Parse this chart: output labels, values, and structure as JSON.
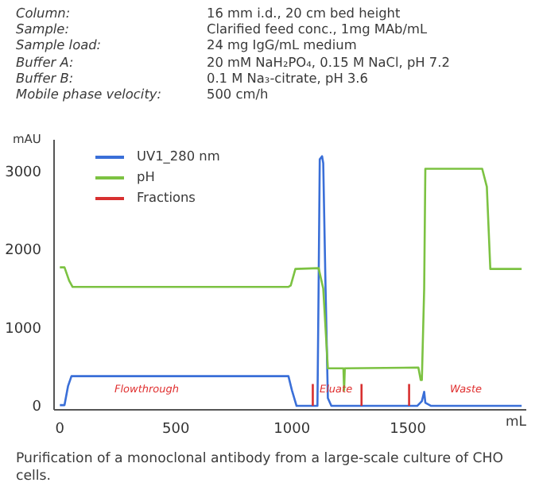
{
  "chart_data": {
    "type": "line",
    "ylabel": "mAU",
    "xlabel": "mL",
    "annotations": [
      "Column: 16 mm i.d., 20 cm bed height",
      "Sample: Clarified feed conc., 1mg MAb/mL",
      "Sample load: 24 mg IgG/mL medium",
      "Buffer A: 20 mM NaH₂PO₄, 0.15 M NaCl, pH 7.2",
      "Buffer B: 0.1 M Na₃-citrate, pH 3.6",
      "Mobile phase velocity: 500 cm/h",
      "Purification of a monoclonal antibody from a large-scale culture of CHO cells.",
      "Flowthrough",
      "Eluate",
      "Waste"
    ],
    "xlim": [
      -25,
      2010
    ],
    "xticks": [
      0,
      500,
      1000,
      1500
    ],
    "ylim": [
      -50,
      3400
    ],
    "yticks": [
      0,
      1000,
      2000,
      3000
    ],
    "legend": "top left",
    "marker": "none",
    "line_style": "solid",
    "series": [
      {
        "name": "UV1_280 nm",
        "color": "#3a6fd8",
        "x": [
          0,
          20,
          35,
          50,
          300,
          985,
          1000,
          1020,
          1090,
          1110,
          1115,
          1120,
          1130,
          1135,
          1145,
          1155,
          1170,
          1540,
          1560,
          1570,
          1575,
          1600,
          1990
        ],
        "values": [
          10,
          10,
          250,
          380,
          380,
          380,
          200,
          0,
          0,
          0,
          1500,
          3150,
          3190,
          3100,
          1500,
          100,
          0,
          0,
          60,
          180,
          40,
          0,
          0
        ]
      },
      {
        "name": "pH",
        "color": "#7cc242",
        "x": [
          0,
          20,
          40,
          55,
          985,
          995,
          1015,
          1115,
          1135,
          1155,
          1220,
          1222,
          1225,
          1228,
          1545,
          1555,
          1560,
          1570,
          1575,
          1820,
          1840,
          1855,
          1990
        ],
        "values": [
          1770,
          1770,
          1600,
          1520,
          1520,
          1540,
          1750,
          1760,
          1500,
          480,
          480,
          480,
          200,
          480,
          490,
          330,
          330,
          1500,
          3030,
          3030,
          2800,
          1750,
          1750
        ]
      },
      {
        "name": "Fractions",
        "color": "#d83030",
        "x": [
          1090,
          1090,
          1091,
          1300,
          1300,
          1301,
          1505,
          1505
        ],
        "values": [
          0,
          280,
          null,
          0,
          280,
          null,
          0,
          280
        ]
      }
    ]
  }
}
